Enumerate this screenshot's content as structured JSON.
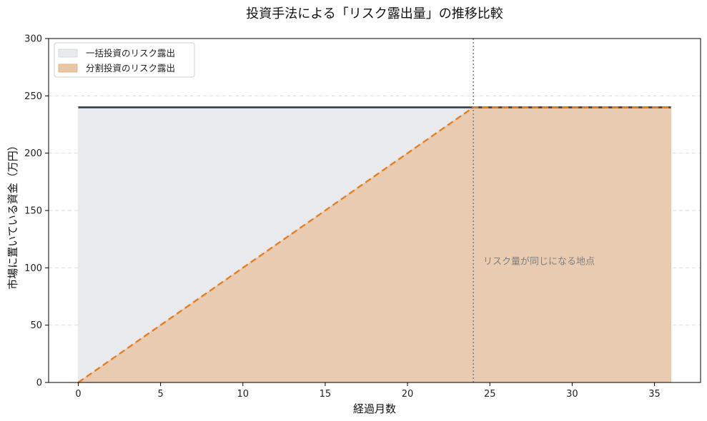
{
  "chart_data": {
    "type": "area",
    "title": "投資手法による「リスク露出量」の推移比較",
    "xlabel": "経過月数",
    "ylabel": "市場に置いている資金（万円）",
    "xlim": [
      -1.8,
      37.8
    ],
    "ylim": [
      0,
      300
    ],
    "x_ticks": [
      0,
      5,
      10,
      15,
      20,
      25,
      30,
      35
    ],
    "y_ticks": [
      0,
      50,
      100,
      150,
      200,
      250,
      300
    ],
    "grid": "y-dashed",
    "legend_position": "top-left",
    "series": [
      {
        "name": "一括投資のリスク露出",
        "x": [
          0,
          36
        ],
        "y": [
          240,
          240
        ],
        "fill_color": "#e8eaed",
        "line_color": "#2c3e50",
        "line_style": "solid"
      },
      {
        "name": "分割投資のリスク露出",
        "x": [
          0,
          24,
          36
        ],
        "y": [
          0,
          240,
          240
        ],
        "fill_color": "#e8c8aa",
        "line_color": "#e67e22",
        "line_style": "dashed"
      }
    ],
    "reference_lines": [
      {
        "axis": "x",
        "value": 24,
        "color": "#808080",
        "style": "dotted"
      }
    ],
    "annotations": [
      {
        "text": "リスク量が同じになる地点",
        "x": 24.6,
        "y": 103
      }
    ]
  }
}
